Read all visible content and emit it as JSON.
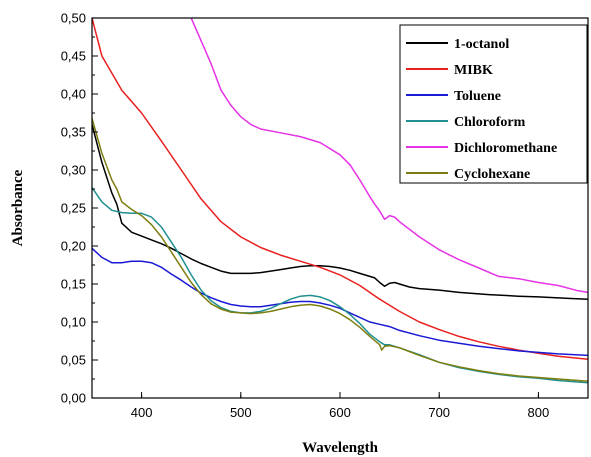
{
  "chart_data": {
    "type": "line",
    "title": "",
    "xlabel": "Wavelength",
    "ylabel": "Absorbance",
    "xlim": [
      350,
      850
    ],
    "ylim": [
      0.0,
      0.5
    ],
    "x_ticks": [
      {
        "value": 400,
        "label": "400"
      },
      {
        "value": 500,
        "label": "500"
      },
      {
        "value": 600,
        "label": "600"
      },
      {
        "value": 700,
        "label": "700"
      },
      {
        "value": 800,
        "label": "800"
      }
    ],
    "y_ticks": [
      {
        "value": 0.0,
        "label": "0,00"
      },
      {
        "value": 0.05,
        "label": "0,05"
      },
      {
        "value": 0.1,
        "label": "0,10"
      },
      {
        "value": 0.15,
        "label": "0,15"
      },
      {
        "value": 0.2,
        "label": "0,20"
      },
      {
        "value": 0.25,
        "label": "0,25"
      },
      {
        "value": 0.3,
        "label": "0,30"
      },
      {
        "value": 0.35,
        "label": "0,35"
      },
      {
        "value": 0.4,
        "label": "0,40"
      },
      {
        "value": 0.45,
        "label": "0,45"
      },
      {
        "value": 0.5,
        "label": "0,50"
      }
    ],
    "grid": false,
    "legend_position": "top-right",
    "series": [
      {
        "name": "1-octanol",
        "color": "#000000",
        "points": [
          [
            350,
            0.36
          ],
          [
            360,
            0.31
          ],
          [
            370,
            0.27
          ],
          [
            375,
            0.255
          ],
          [
            380,
            0.23
          ],
          [
            390,
            0.218
          ],
          [
            400,
            0.213
          ],
          [
            410,
            0.208
          ],
          [
            420,
            0.203
          ],
          [
            430,
            0.197
          ],
          [
            440,
            0.19
          ],
          [
            450,
            0.183
          ],
          [
            460,
            0.177
          ],
          [
            470,
            0.172
          ],
          [
            480,
            0.167
          ],
          [
            490,
            0.164
          ],
          [
            500,
            0.164
          ],
          [
            510,
            0.164
          ],
          [
            520,
            0.165
          ],
          [
            530,
            0.167
          ],
          [
            540,
            0.169
          ],
          [
            550,
            0.171
          ],
          [
            560,
            0.173
          ],
          [
            570,
            0.174
          ],
          [
            580,
            0.174
          ],
          [
            590,
            0.173
          ],
          [
            600,
            0.171
          ],
          [
            610,
            0.168
          ],
          [
            620,
            0.164
          ],
          [
            630,
            0.16
          ],
          [
            635,
            0.158
          ],
          [
            640,
            0.152
          ],
          [
            645,
            0.147
          ],
          [
            650,
            0.151
          ],
          [
            655,
            0.152
          ],
          [
            660,
            0.15
          ],
          [
            670,
            0.146
          ],
          [
            680,
            0.144
          ],
          [
            700,
            0.142
          ],
          [
            720,
            0.139
          ],
          [
            750,
            0.136
          ],
          [
            780,
            0.134
          ],
          [
            800,
            0.133
          ],
          [
            830,
            0.131
          ],
          [
            850,
            0.13
          ]
        ]
      },
      {
        "name": "MIBK",
        "color": "#e8211f",
        "points": [
          [
            350,
            0.5
          ],
          [
            360,
            0.45
          ],
          [
            380,
            0.405
          ],
          [
            400,
            0.375
          ],
          [
            420,
            0.338
          ],
          [
            440,
            0.3
          ],
          [
            460,
            0.262
          ],
          [
            480,
            0.232
          ],
          [
            500,
            0.212
          ],
          [
            520,
            0.198
          ],
          [
            540,
            0.188
          ],
          [
            560,
            0.18
          ],
          [
            580,
            0.172
          ],
          [
            600,
            0.162
          ],
          [
            620,
            0.148
          ],
          [
            640,
            0.13
          ],
          [
            660,
            0.114
          ],
          [
            680,
            0.1
          ],
          [
            700,
            0.09
          ],
          [
            720,
            0.081
          ],
          [
            740,
            0.074
          ],
          [
            760,
            0.068
          ],
          [
            780,
            0.063
          ],
          [
            800,
            0.059
          ],
          [
            820,
            0.055
          ],
          [
            850,
            0.051
          ]
        ]
      },
      {
        "name": "Toluene",
        "color": "#1a1ad6",
        "points": [
          [
            350,
            0.197
          ],
          [
            360,
            0.185
          ],
          [
            370,
            0.178
          ],
          [
            380,
            0.178
          ],
          [
            390,
            0.18
          ],
          [
            400,
            0.18
          ],
          [
            410,
            0.178
          ],
          [
            420,
            0.172
          ],
          [
            430,
            0.163
          ],
          [
            440,
            0.155
          ],
          [
            450,
            0.146
          ],
          [
            460,
            0.138
          ],
          [
            470,
            0.132
          ],
          [
            480,
            0.127
          ],
          [
            490,
            0.123
          ],
          [
            500,
            0.121
          ],
          [
            510,
            0.12
          ],
          [
            520,
            0.12
          ],
          [
            530,
            0.122
          ],
          [
            540,
            0.124
          ],
          [
            550,
            0.126
          ],
          [
            560,
            0.127
          ],
          [
            570,
            0.127
          ],
          [
            580,
            0.125
          ],
          [
            590,
            0.122
          ],
          [
            600,
            0.118
          ],
          [
            610,
            0.112
          ],
          [
            620,
            0.106
          ],
          [
            630,
            0.1
          ],
          [
            640,
            0.097
          ],
          [
            650,
            0.094
          ],
          [
            660,
            0.089
          ],
          [
            680,
            0.082
          ],
          [
            700,
            0.076
          ],
          [
            720,
            0.072
          ],
          [
            740,
            0.068
          ],
          [
            760,
            0.065
          ],
          [
            780,
            0.062
          ],
          [
            800,
            0.06
          ],
          [
            820,
            0.058
          ],
          [
            850,
            0.056
          ]
        ]
      },
      {
        "name": "Chloroform",
        "color": "#1f8f8f",
        "points": [
          [
            350,
            0.277
          ],
          [
            360,
            0.258
          ],
          [
            370,
            0.247
          ],
          [
            380,
            0.244
          ],
          [
            390,
            0.243
          ],
          [
            400,
            0.243
          ],
          [
            410,
            0.238
          ],
          [
            420,
            0.225
          ],
          [
            430,
            0.205
          ],
          [
            440,
            0.185
          ],
          [
            450,
            0.162
          ],
          [
            460,
            0.142
          ],
          [
            470,
            0.128
          ],
          [
            480,
            0.119
          ],
          [
            490,
            0.114
          ],
          [
            500,
            0.112
          ],
          [
            510,
            0.112
          ],
          [
            520,
            0.114
          ],
          [
            530,
            0.118
          ],
          [
            540,
            0.124
          ],
          [
            550,
            0.13
          ],
          [
            560,
            0.134
          ],
          [
            570,
            0.135
          ],
          [
            580,
            0.133
          ],
          [
            590,
            0.128
          ],
          [
            600,
            0.12
          ],
          [
            610,
            0.11
          ],
          [
            620,
            0.098
          ],
          [
            630,
            0.084
          ],
          [
            640,
            0.074
          ],
          [
            645,
            0.07
          ],
          [
            650,
            0.07
          ],
          [
            660,
            0.066
          ],
          [
            680,
            0.057
          ],
          [
            700,
            0.047
          ],
          [
            720,
            0.04
          ],
          [
            740,
            0.035
          ],
          [
            760,
            0.031
          ],
          [
            780,
            0.028
          ],
          [
            800,
            0.026
          ],
          [
            820,
            0.023
          ],
          [
            850,
            0.02
          ]
        ]
      },
      {
        "name": "Dichloromethane",
        "color": "#e633e6",
        "points": [
          [
            450,
            0.5
          ],
          [
            460,
            0.47
          ],
          [
            470,
            0.44
          ],
          [
            480,
            0.405
          ],
          [
            490,
            0.385
          ],
          [
            500,
            0.37
          ],
          [
            510,
            0.36
          ],
          [
            520,
            0.354
          ],
          [
            540,
            0.349
          ],
          [
            560,
            0.344
          ],
          [
            580,
            0.336
          ],
          [
            600,
            0.32
          ],
          [
            610,
            0.307
          ],
          [
            620,
            0.287
          ],
          [
            630,
            0.265
          ],
          [
            635,
            0.255
          ],
          [
            640,
            0.246
          ],
          [
            645,
            0.235
          ],
          [
            650,
            0.24
          ],
          [
            655,
            0.238
          ],
          [
            660,
            0.232
          ],
          [
            680,
            0.212
          ],
          [
            700,
            0.195
          ],
          [
            720,
            0.182
          ],
          [
            740,
            0.171
          ],
          [
            760,
            0.16
          ],
          [
            780,
            0.157
          ],
          [
            800,
            0.152
          ],
          [
            820,
            0.148
          ],
          [
            840,
            0.141
          ],
          [
            850,
            0.139
          ]
        ]
      },
      {
        "name": "Cyclohexane",
        "color": "#7d7d10",
        "points": [
          [
            350,
            0.368
          ],
          [
            360,
            0.322
          ],
          [
            370,
            0.287
          ],
          [
            375,
            0.275
          ],
          [
            378,
            0.265
          ],
          [
            380,
            0.258
          ],
          [
            390,
            0.248
          ],
          [
            400,
            0.24
          ],
          [
            410,
            0.228
          ],
          [
            420,
            0.212
          ],
          [
            430,
            0.192
          ],
          [
            440,
            0.172
          ],
          [
            450,
            0.152
          ],
          [
            460,
            0.136
          ],
          [
            470,
            0.124
          ],
          [
            480,
            0.117
          ],
          [
            490,
            0.113
          ],
          [
            500,
            0.112
          ],
          [
            510,
            0.111
          ],
          [
            520,
            0.112
          ],
          [
            530,
            0.114
          ],
          [
            540,
            0.117
          ],
          [
            550,
            0.12
          ],
          [
            560,
            0.122
          ],
          [
            570,
            0.123
          ],
          [
            580,
            0.121
          ],
          [
            590,
            0.117
          ],
          [
            600,
            0.111
          ],
          [
            610,
            0.103
          ],
          [
            620,
            0.093
          ],
          [
            630,
            0.081
          ],
          [
            640,
            0.07
          ],
          [
            642,
            0.063
          ],
          [
            645,
            0.068
          ],
          [
            650,
            0.069
          ],
          [
            660,
            0.066
          ],
          [
            680,
            0.056
          ],
          [
            700,
            0.047
          ],
          [
            720,
            0.041
          ],
          [
            740,
            0.036
          ],
          [
            760,
            0.032
          ],
          [
            780,
            0.029
          ],
          [
            800,
            0.027
          ],
          [
            820,
            0.025
          ],
          [
            850,
            0.022
          ]
        ]
      }
    ]
  }
}
